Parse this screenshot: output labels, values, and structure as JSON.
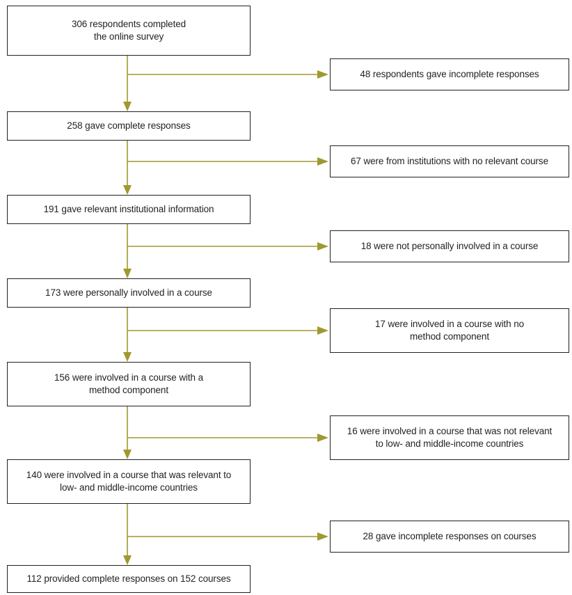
{
  "colors": {
    "connector": "#9f9930",
    "border": "#231f20",
    "text": "#231f20"
  },
  "main_flow": [
    {
      "lines": [
        "306 respondents completed",
        "the online survey"
      ]
    },
    {
      "lines": [
        "258 gave complete responses"
      ]
    },
    {
      "lines": [
        "191 gave relevant institutional information"
      ]
    },
    {
      "lines": [
        "173 were personally involved in a course"
      ]
    },
    {
      "lines": [
        "156 were involved in a course with a",
        "method component"
      ]
    },
    {
      "lines": [
        "140 were involved in a course that was relevant to",
        "low- and middle-income countries"
      ]
    },
    {
      "lines": [
        "112 provided complete responses on 152 courses"
      ]
    }
  ],
  "exclusions": [
    {
      "lines": [
        "48 respondents gave incomplete responses"
      ]
    },
    {
      "lines": [
        "67 were from institutions with no relevant course"
      ]
    },
    {
      "lines": [
        "18 were not personally involved in a course"
      ]
    },
    {
      "lines": [
        "17 were involved in a course with no",
        "method component"
      ]
    },
    {
      "lines": [
        "16 were involved in a course that was not relevant",
        "to low- and middle-income countries"
      ]
    },
    {
      "lines": [
        "28 gave incomplete responses on courses"
      ]
    }
  ]
}
